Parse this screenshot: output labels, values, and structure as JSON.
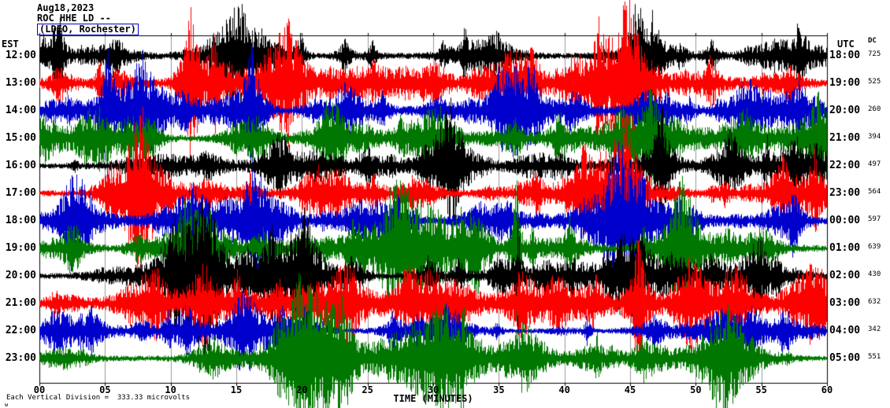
{
  "header": {
    "date": "Aug18,2023",
    "station": "ROC HHE LD --",
    "location": "(LDEO, Rochester)"
  },
  "axes": {
    "left_label": "EST",
    "right_label": "UTC",
    "dc_label": "DC",
    "x_label": "TIME (MINUTES)",
    "x_ticks": [
      "00",
      "05",
      "10",
      "15",
      "20",
      "25",
      "30",
      "35",
      "40",
      "45",
      "50",
      "55",
      "60"
    ]
  },
  "footer": {
    "scale_note": "Each Vertical Division =  333.33 microvolts",
    "corner_mark": "w"
  },
  "chart_data": {
    "type": "line",
    "title": "ROC HHE LD -- (LDEO, Rochester) helicorder, Aug18,2023",
    "x_label": "TIME (MINUTES)",
    "x_range_minutes": [
      0,
      60
    ],
    "x_tick_interval_minutes": 5,
    "minutes_per_row": 60,
    "grid": true,
    "microvolts_per_division": 333.33,
    "trace_color_cycle": [
      "#000000",
      "#ff0000",
      "#0000cc",
      "#007700"
    ],
    "rows": [
      {
        "est": "12:00",
        "utc": "18:00",
        "dc": 725,
        "color": "#000000",
        "activity": 1.0
      },
      {
        "est": "13:00",
        "utc": "19:00",
        "dc": 525,
        "color": "#ff0000",
        "activity": 1.15
      },
      {
        "est": "14:00",
        "utc": "20:00",
        "dc": 260,
        "color": "#0000cc",
        "activity": 0.9
      },
      {
        "est": "15:00",
        "utc": "21:00",
        "dc": 394,
        "color": "#007700",
        "activity": 1.1
      },
      {
        "est": "16:00",
        "utc": "22:00",
        "dc": 497,
        "color": "#000000",
        "activity": 1.0
      },
      {
        "est": "17:00",
        "utc": "23:00",
        "dc": 564,
        "color": "#ff0000",
        "activity": 1.1
      },
      {
        "est": "18:00",
        "utc": "00:00",
        "dc": 597,
        "color": "#0000cc",
        "activity": 1.0
      },
      {
        "est": "19:00",
        "utc": "01:00",
        "dc": 639,
        "color": "#007700",
        "activity": 1.1
      },
      {
        "est": "20:00",
        "utc": "02:00",
        "dc": 430,
        "color": "#000000",
        "activity": 0.95
      },
      {
        "est": "21:00",
        "utc": "03:00",
        "dc": 632,
        "color": "#ff0000",
        "activity": 1.15
      },
      {
        "est": "22:00",
        "utc": "04:00",
        "dc": 342,
        "color": "#0000cc",
        "activity": 0.8
      },
      {
        "est": "23:00",
        "utc": "05:00",
        "dc": 551,
        "color": "#007700",
        "activity": 1.0
      }
    ]
  }
}
